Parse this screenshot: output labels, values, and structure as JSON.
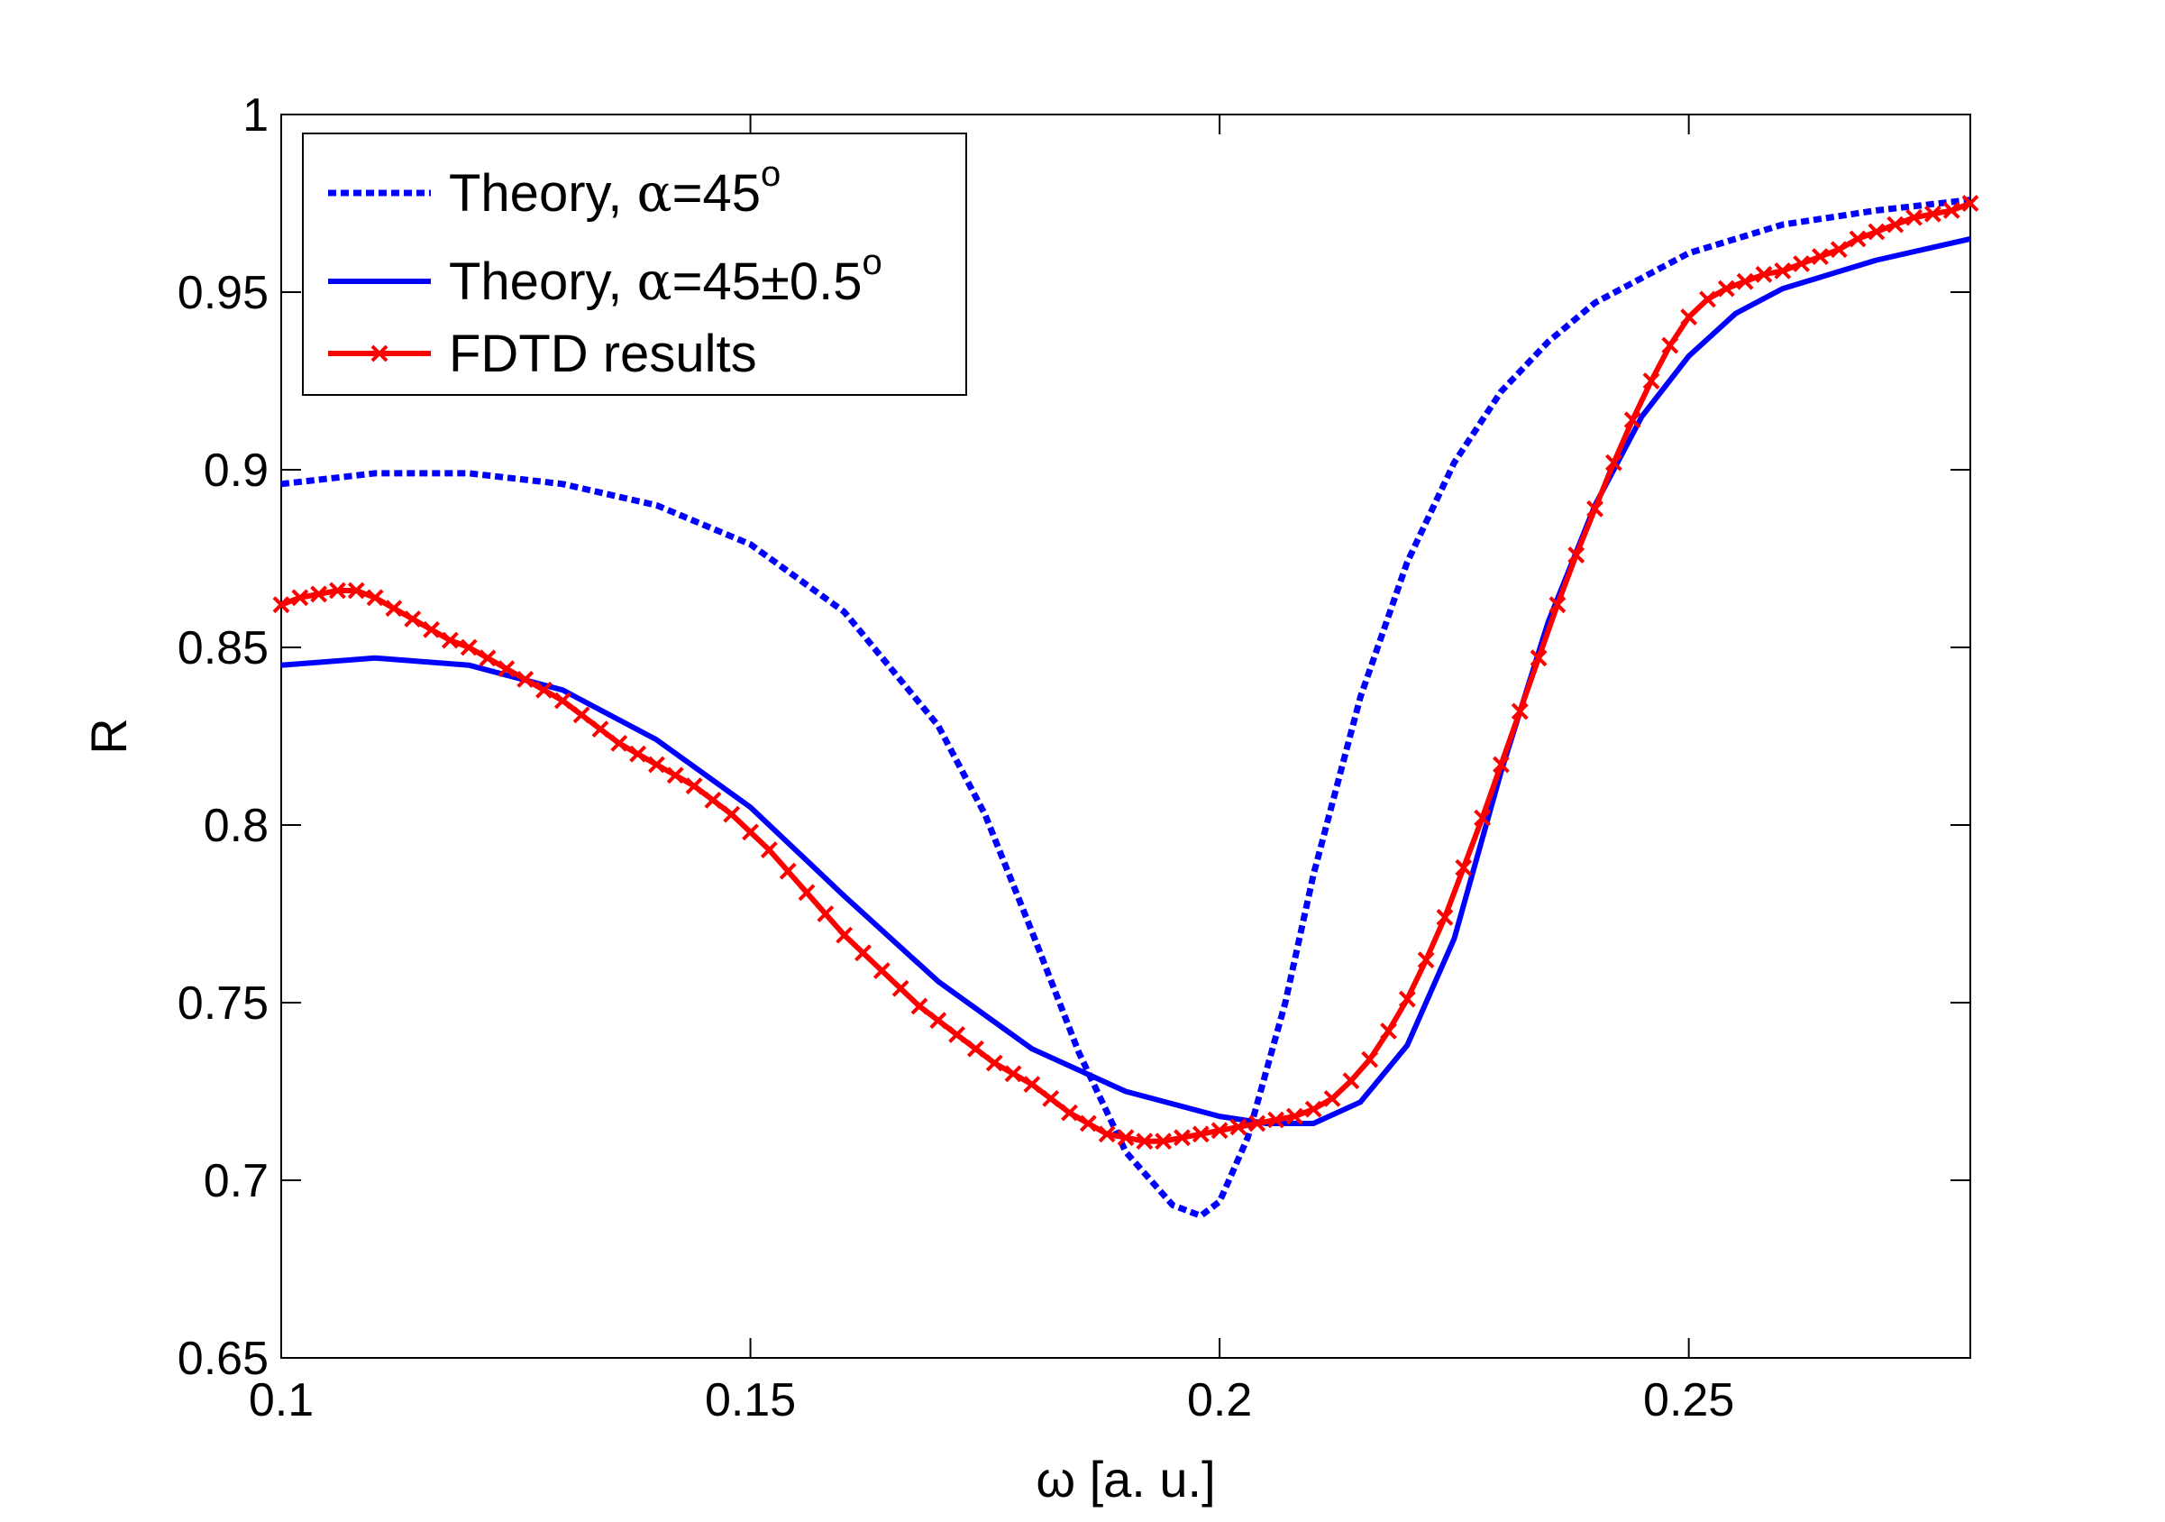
{
  "chart_data": {
    "type": "line",
    "title": "",
    "xlabel": "ω [a. u.]",
    "ylabel": "R",
    "xlim": [
      0.1,
      0.28
    ],
    "ylim": [
      0.65,
      1.0
    ],
    "xticks": [
      0.1,
      0.15,
      0.2,
      0.25
    ],
    "xtick_labels": [
      "0.1",
      "0.15",
      "0.2",
      "0.25"
    ],
    "yticks": [
      0.65,
      0.7,
      0.75,
      0.8,
      0.85,
      0.9,
      0.95,
      1.0
    ],
    "ytick_labels": [
      "0.65",
      "0.7",
      "0.75",
      "0.8",
      "0.85",
      "0.9",
      "0.95",
      "1"
    ],
    "grid": false,
    "legend_position": "top-left",
    "series": [
      {
        "name": "Theory, α=45°",
        "legend_prefix": "Theory, ",
        "legend_greek": "α",
        "legend_suffix": "=45",
        "legend_sup": "o",
        "color": "#0000ff",
        "style": "dotted",
        "marker": "none",
        "x": [
          0.1,
          0.11,
          0.12,
          0.13,
          0.14,
          0.15,
          0.16,
          0.17,
          0.175,
          0.18,
          0.185,
          0.19,
          0.195,
          0.198,
          0.2,
          0.203,
          0.207,
          0.21,
          0.215,
          0.22,
          0.225,
          0.23,
          0.235,
          0.24,
          0.25,
          0.26,
          0.27,
          0.28
        ],
        "y": [
          0.896,
          0.899,
          0.899,
          0.896,
          0.89,
          0.879,
          0.86,
          0.828,
          0.803,
          0.77,
          0.736,
          0.708,
          0.693,
          0.69,
          0.694,
          0.712,
          0.75,
          0.786,
          0.836,
          0.874,
          0.902,
          0.922,
          0.936,
          0.947,
          0.961,
          0.969,
          0.973,
          0.976
        ]
      },
      {
        "name": "Theory, α=45±0.5°",
        "legend_prefix": "Theory, ",
        "legend_greek": "α",
        "legend_suffix": "=45±0.5",
        "legend_sup": "o",
        "color": "#0000ff",
        "style": "solid",
        "marker": "none",
        "x": [
          0.1,
          0.11,
          0.12,
          0.13,
          0.14,
          0.15,
          0.16,
          0.17,
          0.18,
          0.19,
          0.2,
          0.205,
          0.21,
          0.215,
          0.22,
          0.225,
          0.23,
          0.235,
          0.24,
          0.245,
          0.25,
          0.255,
          0.26,
          0.27,
          0.28
        ],
        "y": [
          0.845,
          0.847,
          0.845,
          0.838,
          0.824,
          0.805,
          0.78,
          0.756,
          0.737,
          0.725,
          0.718,
          0.716,
          0.716,
          0.722,
          0.738,
          0.768,
          0.815,
          0.857,
          0.89,
          0.915,
          0.932,
          0.944,
          0.951,
          0.959,
          0.965
        ]
      },
      {
        "name": "FDTD results",
        "legend_prefix": "FDTD results",
        "legend_greek": "",
        "legend_suffix": "",
        "legend_sup": "",
        "color": "#ff0000",
        "style": "solid",
        "marker": "x",
        "x": [
          0.1,
          0.102,
          0.104,
          0.106,
          0.108,
          0.11,
          0.112,
          0.114,
          0.116,
          0.118,
          0.12,
          0.122,
          0.124,
          0.126,
          0.128,
          0.13,
          0.132,
          0.134,
          0.136,
          0.138,
          0.14,
          0.142,
          0.144,
          0.146,
          0.148,
          0.15,
          0.152,
          0.154,
          0.156,
          0.158,
          0.16,
          0.162,
          0.164,
          0.166,
          0.168,
          0.17,
          0.172,
          0.174,
          0.176,
          0.178,
          0.18,
          0.182,
          0.184,
          0.186,
          0.188,
          0.19,
          0.192,
          0.194,
          0.196,
          0.198,
          0.2,
          0.202,
          0.204,
          0.206,
          0.208,
          0.21,
          0.212,
          0.214,
          0.216,
          0.218,
          0.22,
          0.222,
          0.224,
          0.226,
          0.228,
          0.23,
          0.232,
          0.234,
          0.236,
          0.238,
          0.24,
          0.242,
          0.244,
          0.246,
          0.248,
          0.25,
          0.252,
          0.254,
          0.256,
          0.258,
          0.26,
          0.262,
          0.264,
          0.266,
          0.268,
          0.27,
          0.272,
          0.274,
          0.276,
          0.278,
          0.28
        ],
        "y": [
          0.862,
          0.864,
          0.865,
          0.866,
          0.866,
          0.864,
          0.861,
          0.858,
          0.855,
          0.852,
          0.85,
          0.847,
          0.844,
          0.841,
          0.838,
          0.835,
          0.831,
          0.827,
          0.823,
          0.82,
          0.817,
          0.814,
          0.811,
          0.807,
          0.803,
          0.798,
          0.793,
          0.787,
          0.781,
          0.775,
          0.769,
          0.764,
          0.759,
          0.754,
          0.749,
          0.745,
          0.741,
          0.737,
          0.733,
          0.73,
          0.727,
          0.723,
          0.719,
          0.716,
          0.713,
          0.712,
          0.711,
          0.711,
          0.712,
          0.713,
          0.714,
          0.715,
          0.716,
          0.717,
          0.718,
          0.72,
          0.723,
          0.728,
          0.734,
          0.742,
          0.751,
          0.762,
          0.774,
          0.788,
          0.802,
          0.817,
          0.832,
          0.847,
          0.862,
          0.876,
          0.889,
          0.902,
          0.914,
          0.925,
          0.935,
          0.943,
          0.948,
          0.951,
          0.953,
          0.955,
          0.956,
          0.958,
          0.96,
          0.962,
          0.965,
          0.967,
          0.969,
          0.971,
          0.972,
          0.973,
          0.975
        ]
      }
    ]
  }
}
